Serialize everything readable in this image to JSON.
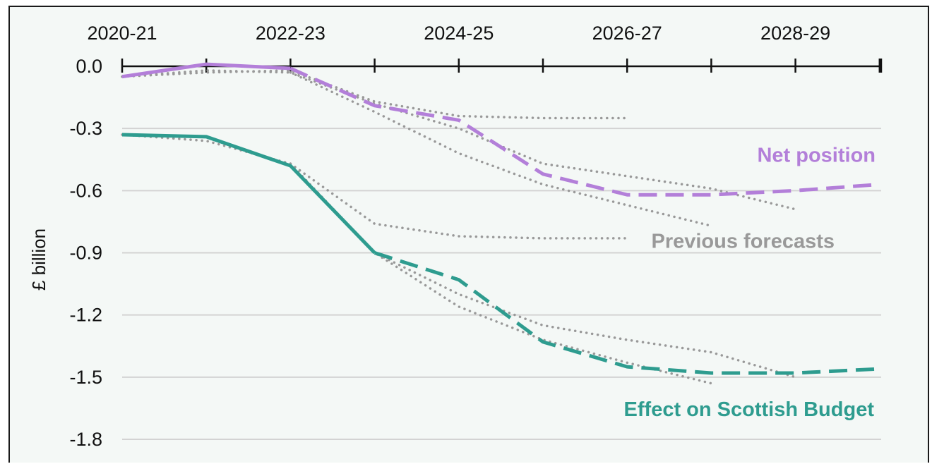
{
  "chart_data": {
    "type": "line",
    "title": "",
    "xlabel": "",
    "ylabel": "£ billion",
    "x_tick_labels": [
      "2020-21",
      "2022-23",
      "2024-25",
      "2026-27",
      "2028-29"
    ],
    "x_tick_positions": [
      "2020-21",
      "2022-23",
      "2024-25",
      "2026-27",
      "2028-29"
    ],
    "x_categories": [
      "2020-21",
      "2021-22",
      "2022-23",
      "2023-24",
      "2024-25",
      "2025-26",
      "2026-27",
      "2027-28",
      "2028-29",
      "2029-30"
    ],
    "ylim": [
      -1.8,
      0.0
    ],
    "y_ticks": [
      0.0,
      -0.3,
      -0.6,
      -0.9,
      -1.2,
      -1.5,
      -1.8
    ],
    "y_tick_labels": [
      "0.0",
      "-0.3",
      "-0.6",
      "-0.9",
      "-1.2",
      "-1.5",
      "-1.8"
    ],
    "grid": "horizontal",
    "series": [
      {
        "name": "Net position",
        "color": "#b37fd9",
        "solid_until": "2022-23",
        "values": [
          -0.05,
          0.01,
          -0.01,
          -0.19,
          -0.26,
          -0.52,
          -0.62,
          -0.62,
          -0.6,
          -0.57
        ]
      },
      {
        "name": "Effect on Scottish Budget",
        "color": "#2e9c8f",
        "solid_until": "2023-24",
        "values": [
          -0.33,
          -0.34,
          -0.48,
          -0.9,
          -1.03,
          -1.33,
          -1.45,
          -1.48,
          -1.48,
          -1.46
        ]
      }
    ],
    "previous_forecasts": {
      "label": "Previous forecasts",
      "color": "#999999",
      "lines": [
        {
          "values": [
            -0.05,
            -0.03,
            -0.02,
            -0.17,
            -0.24,
            -0.25,
            -0.25
          ]
        },
        {
          "values": [
            -0.05,
            -0.02,
            -0.03,
            -0.18,
            -0.3,
            -0.47,
            -0.53,
            -0.59,
            -0.69
          ]
        },
        {
          "values": [
            null,
            null,
            -0.03,
            -0.22,
            -0.42,
            -0.57,
            -0.67,
            -0.77
          ]
        },
        {
          "values": [
            -0.33,
            -0.36,
            -0.47,
            -0.76,
            -0.82,
            -0.83,
            -0.83
          ]
        },
        {
          "values": [
            null,
            null,
            -0.48,
            -0.9,
            -1.1,
            -1.25,
            -1.32,
            -1.38,
            -1.5
          ]
        },
        {
          "values": [
            null,
            null,
            -0.47,
            -0.9,
            -1.16,
            -1.32,
            -1.43,
            -1.53
          ]
        }
      ]
    },
    "annotations": [
      {
        "text": "Net position",
        "color": "#b37fd9"
      },
      {
        "text": "Previous forecasts",
        "color": "#999999"
      },
      {
        "text": "Effect on Scottish Budget",
        "color": "#2e9c8f"
      }
    ]
  }
}
